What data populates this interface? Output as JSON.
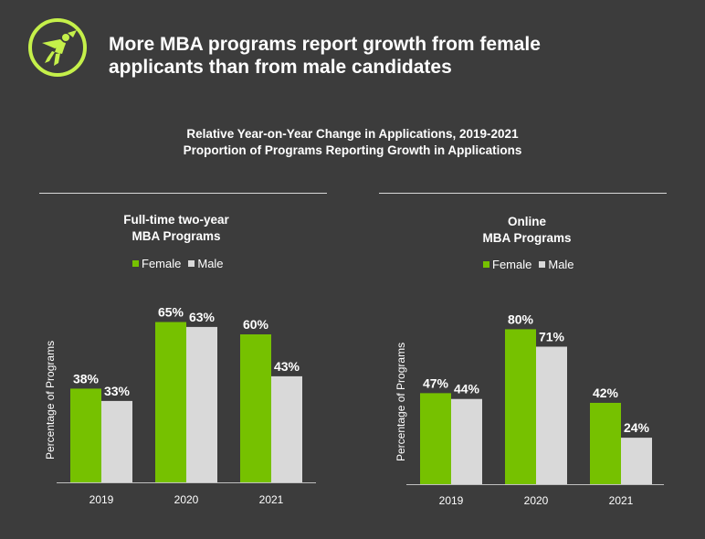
{
  "header": {
    "title_line1": "More MBA programs report growth from female",
    "title_line2": "applicants than from male candidates",
    "logo_icon": "superhero-icon"
  },
  "subtitle_line1": "Relative Year-on-Year Change in Applications, 2019-2021",
  "subtitle_line2": "Proportion of Programs Reporting Growth in Applications",
  "colors": {
    "female": "#76c100",
    "male": "#d9d9d9",
    "background": "#3c3c3c",
    "accent": "#c5f04a"
  },
  "chart_data": [
    {
      "type": "bar",
      "title_line1": "Full-time two-year",
      "title_line2": "MBA Programs",
      "ylabel": "Percentage of Programs",
      "categories": [
        "2019",
        "2020",
        "2021"
      ],
      "series": [
        {
          "name": "Female",
          "values": [
            38,
            65,
            60
          ],
          "labels": [
            "38%",
            "65%",
            "60%"
          ]
        },
        {
          "name": "Male",
          "values": [
            33,
            63,
            43
          ],
          "labels": [
            "33%",
            "63%",
            "43%"
          ]
        }
      ],
      "ylim": [
        0,
        100
      ],
      "legend": "top",
      "grid": false
    },
    {
      "type": "bar",
      "title_line1": "Online",
      "title_line2": "MBA Programs",
      "ylabel": "Percentage of Programs",
      "categories": [
        "2019",
        "2020",
        "2021"
      ],
      "series": [
        {
          "name": "Female",
          "values": [
            47,
            80,
            42
          ],
          "labels": [
            "47%",
            "80%",
            "42%"
          ]
        },
        {
          "name": "Male",
          "values": [
            44,
            71,
            24
          ],
          "labels": [
            "44%",
            "71%",
            "24%"
          ]
        }
      ],
      "ylim": [
        0,
        100
      ],
      "legend": "top",
      "grid": false
    }
  ]
}
